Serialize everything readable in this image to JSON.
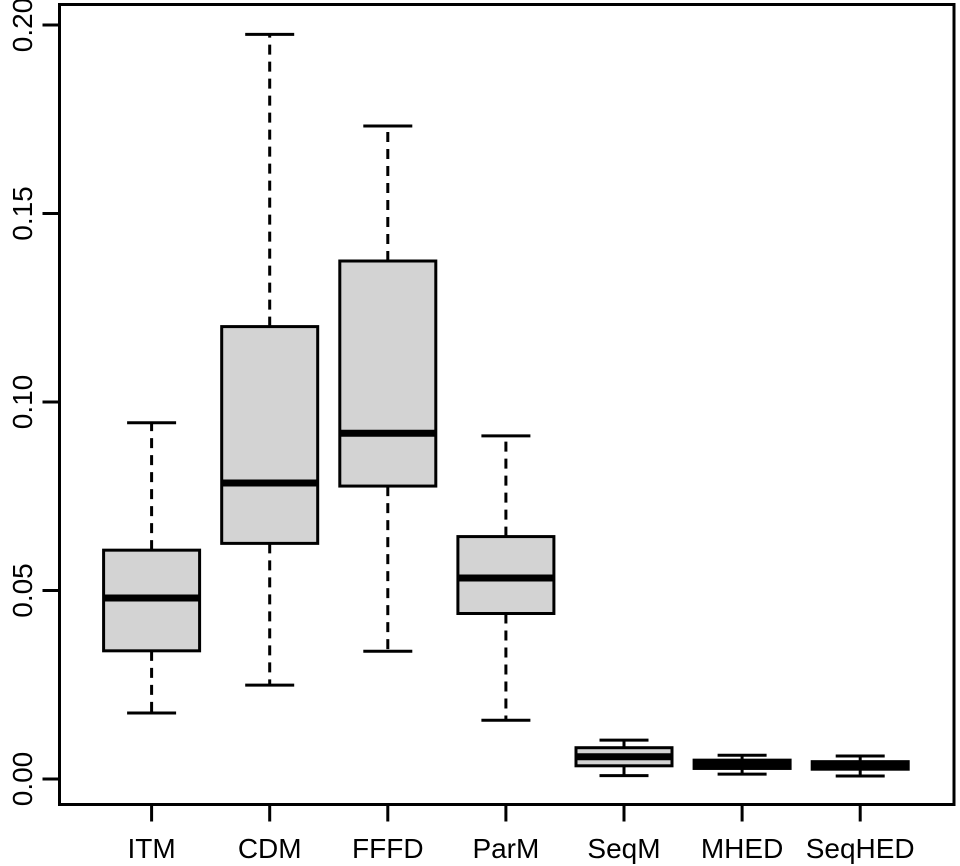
{
  "chart_data": {
    "type": "boxplot",
    "title": "",
    "xlabel": "",
    "ylabel": "",
    "categories": [
      "ITM",
      "CDM",
      "FFFD",
      "ParM",
      "SeqM",
      "MHED",
      "SeqHED"
    ],
    "series": [
      {
        "name": "ITM",
        "whisker_low": 0.0175,
        "q1": 0.034,
        "median": 0.048,
        "q3": 0.0607,
        "whisker_high": 0.0945
      },
      {
        "name": "CDM",
        "whisker_low": 0.0249,
        "q1": 0.0625,
        "median": 0.0785,
        "q3": 0.12,
        "whisker_high": 0.1975
      },
      {
        "name": "FFFD",
        "whisker_low": 0.0339,
        "q1": 0.0777,
        "median": 0.0917,
        "q3": 0.1374,
        "whisker_high": 0.1732
      },
      {
        "name": "ParM",
        "whisker_low": 0.0156,
        "q1": 0.0439,
        "median": 0.0533,
        "q3": 0.0643,
        "whisker_high": 0.091
      },
      {
        "name": "SeqM",
        "whisker_low": 0.0009,
        "q1": 0.0035,
        "median": 0.0059,
        "q3": 0.0083,
        "whisker_high": 0.0103
      },
      {
        "name": "MHED",
        "whisker_low": 0.0013,
        "q1": 0.0028,
        "median": 0.004,
        "q3": 0.005,
        "whisker_high": 0.0063
      },
      {
        "name": "SeqHED",
        "whisker_low": 0.0008,
        "q1": 0.0026,
        "median": 0.0035,
        "q3": 0.0046,
        "whisker_high": 0.0061
      }
    ],
    "y_axis": {
      "ylim": [
        0.0,
        0.2
      ],
      "ticks": [
        0.0,
        0.05,
        0.1,
        0.15,
        0.2
      ],
      "tick_labels": [
        "0.00",
        "0.05",
        "0.10",
        "0.15",
        "0.20"
      ],
      "label_rotation_deg": -90
    },
    "x_axis": {
      "tick_labels": [
        "ITM",
        "CDM",
        "FFFD",
        "ParM",
        "SeqM",
        "MHED",
        "SeqHED"
      ]
    },
    "grid": false,
    "legend": false,
    "style": {
      "box_fill": "#d3d3d3",
      "line_color": "#000000",
      "background": "#ffffff",
      "whisker_style": "dashed",
      "plot_border": "full-box"
    }
  }
}
